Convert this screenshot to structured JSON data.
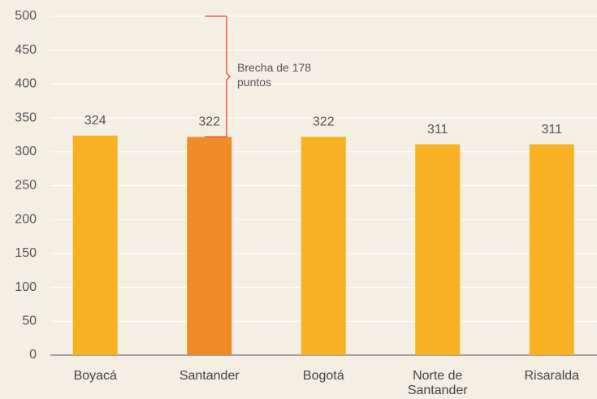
{
  "chart_data": {
    "type": "bar",
    "categories": [
      "Boyacá",
      "Santander",
      "Bogotá",
      "Norte de Santander",
      "Risaralda"
    ],
    "values": [
      324,
      322,
      322,
      311,
      311
    ],
    "colors": [
      "#f8b122",
      "#f08c26",
      "#f8b122",
      "#f8b122",
      "#f8b122"
    ],
    "ylim": [
      0,
      500
    ],
    "yticks": [
      0,
      50,
      100,
      150,
      200,
      250,
      300,
      350,
      400,
      450,
      500
    ],
    "grid": true,
    "annotation": "Brecha de 178 puntos"
  }
}
